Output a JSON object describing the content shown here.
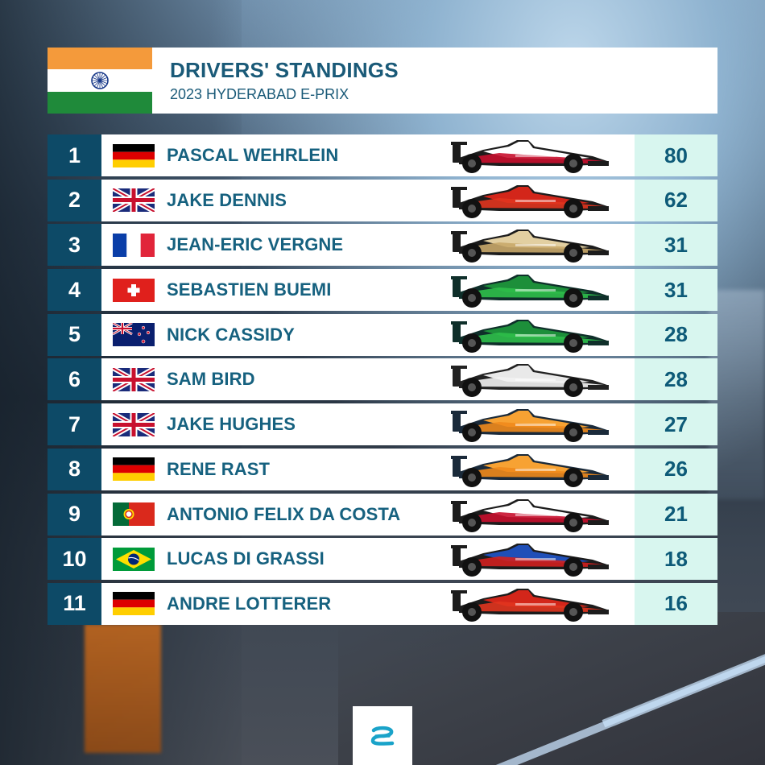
{
  "header": {
    "title": "DRIVERS' STANDINGS",
    "subtitle": "2023 HYDERABAD E-PRIX",
    "flag_icon": "india-flag-icon"
  },
  "colors": {
    "position_bg": "#0d4a67",
    "points_bg": "#d8f6ef",
    "text": "#16617f"
  },
  "standings": [
    {
      "position": "1",
      "driver": "PASCAL WEHRLEIN",
      "flag": "germany",
      "points": "80",
      "car": {
        "body": "#1c1c1c",
        "accent": "#c8102e",
        "top": "#ffffff"
      }
    },
    {
      "position": "2",
      "driver": "JAKE DENNIS",
      "flag": "uk",
      "points": "62",
      "car": {
        "body": "#1c1c1c",
        "accent": "#e1351f",
        "top": "#d3261a"
      }
    },
    {
      "position": "3",
      "driver": "JEAN-ERIC VERGNE",
      "flag": "france",
      "points": "31",
      "car": {
        "body": "#1c1c1c",
        "accent": "#c9a86a",
        "top": "#e2cfa1"
      }
    },
    {
      "position": "4",
      "driver": "SEBASTIEN BUEMI",
      "flag": "switzerland",
      "points": "31",
      "car": {
        "body": "#0f2f2a",
        "accent": "#2fbf4a",
        "top": "#1d8f3a"
      }
    },
    {
      "position": "5",
      "driver": "NICK CASSIDY",
      "flag": "newzealand",
      "points": "28",
      "car": {
        "body": "#0f2f2a",
        "accent": "#2fbf4a",
        "top": "#1d8f3a"
      }
    },
    {
      "position": "6",
      "driver": "SAM BIRD",
      "flag": "uk",
      "points": "28",
      "car": {
        "body": "#222222",
        "accent": "#f2f2f2",
        "top": "#e9e9e9"
      }
    },
    {
      "position": "7",
      "driver": "JAKE HUGHES",
      "flag": "uk",
      "points": "27",
      "car": {
        "body": "#1a2a3a",
        "accent": "#f08a1c",
        "top": "#f7a233"
      }
    },
    {
      "position": "8",
      "driver": "RENE RAST",
      "flag": "germany",
      "points": "26",
      "car": {
        "body": "#1a2a3a",
        "accent": "#f08a1c",
        "top": "#f7a233"
      }
    },
    {
      "position": "9",
      "driver": "ANTONIO FELIX DA COSTA",
      "flag": "portugal",
      "points": "21",
      "car": {
        "body": "#1c1c1c",
        "accent": "#c8102e",
        "top": "#ffffff"
      }
    },
    {
      "position": "10",
      "driver": "LUCAS DI GRASSI",
      "flag": "brazil",
      "points": "18",
      "car": {
        "body": "#1c1c1c",
        "accent": "#d2201f",
        "top": "#1f4fb8"
      }
    },
    {
      "position": "11",
      "driver": "ANDRE LOTTERER",
      "flag": "germany",
      "points": "16",
      "car": {
        "body": "#1c1c1c",
        "accent": "#e1351f",
        "top": "#d3261a"
      }
    }
  ],
  "footer": {
    "logo_icon": "formula-e-logo-icon"
  }
}
